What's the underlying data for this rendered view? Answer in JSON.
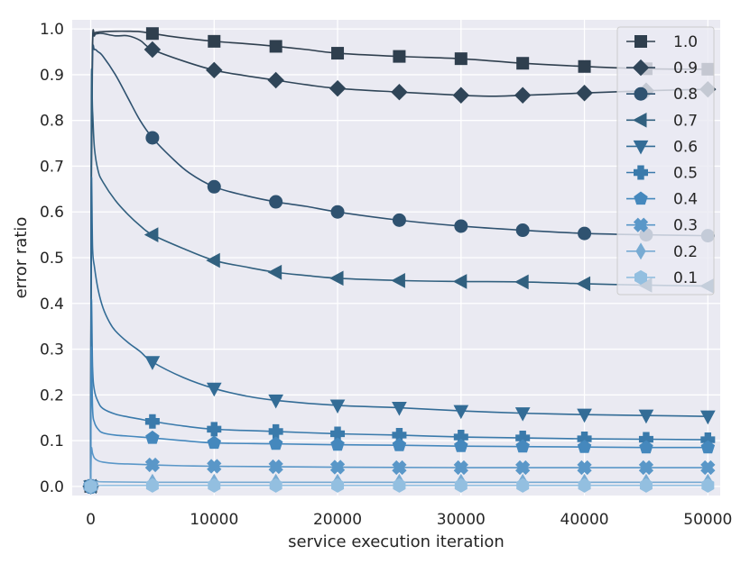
{
  "chart_data": {
    "type": "line",
    "title": "",
    "xlabel": "service execution iteration",
    "ylabel": "error ratio",
    "xlim": [
      -1500,
      51000
    ],
    "ylim": [
      -0.02,
      1.02
    ],
    "xticks": [
      0,
      10000,
      20000,
      30000,
      40000,
      50000
    ],
    "xtick_labels": [
      "0",
      "10000",
      "20000",
      "30000",
      "40000",
      "50000"
    ],
    "yticks": [
      0.0,
      0.1,
      0.2,
      0.3,
      0.4,
      0.5,
      0.6,
      0.7,
      0.8,
      0.9,
      1.0
    ],
    "ytick_labels": [
      "0.0",
      "0.1",
      "0.2",
      "0.3",
      "0.4",
      "0.5",
      "0.6",
      "0.7",
      "0.8",
      "0.9",
      "1.0"
    ],
    "grid": true,
    "legend_position": "top-right",
    "colors": {
      "background": "#eaeaf2",
      "grid": "#ffffff"
    },
    "marker_x": [
      0,
      5000,
      10000,
      15000,
      20000,
      25000,
      30000,
      35000,
      40000,
      45000,
      50000
    ],
    "series": [
      {
        "name": "1.0",
        "color": "#2f3f4e",
        "marker": "square",
        "x": [
          0,
          50,
          150,
          300,
          600,
          1000,
          2000,
          3000,
          4000,
          5000,
          7000,
          10000,
          12500,
          15000,
          17500,
          20000,
          25000,
          30000,
          35000,
          40000,
          45000,
          50000
        ],
        "y": [
          0.0,
          0.7,
          0.97,
          0.99,
          0.993,
          0.994,
          0.995,
          0.995,
          0.994,
          0.99,
          0.982,
          0.973,
          0.968,
          0.962,
          0.955,
          0.947,
          0.94,
          0.935,
          0.925,
          0.918,
          0.913,
          0.912
        ],
        "marker_values": [
          0.0,
          0.99,
          0.973,
          0.962,
          0.947,
          0.94,
          0.935,
          0.925,
          0.918,
          0.913,
          0.912
        ]
      },
      {
        "name": "0.9",
        "color": "#2f4558",
        "marker": "diamond",
        "x": [
          0,
          50,
          150,
          300,
          600,
          1000,
          2000,
          3000,
          4000,
          5000,
          7500,
          10000,
          12500,
          15000,
          17500,
          20000,
          25000,
          30000,
          32500,
          35000,
          40000,
          45000,
          50000
        ],
        "y": [
          0.0,
          0.65,
          0.96,
          0.985,
          0.99,
          0.99,
          0.985,
          0.985,
          0.975,
          0.955,
          0.93,
          0.91,
          0.898,
          0.888,
          0.878,
          0.87,
          0.862,
          0.855,
          0.853,
          0.855,
          0.86,
          0.865,
          0.868
        ],
        "marker_values": [
          0.0,
          0.955,
          0.91,
          0.888,
          0.87,
          0.862,
          0.855,
          0.855,
          0.86,
          0.865,
          0.868
        ]
      },
      {
        "name": "0.8",
        "color": "#2f5270",
        "marker": "circle",
        "x": [
          0,
          50,
          150,
          300,
          600,
          1000,
          2000,
          3000,
          4000,
          5000,
          6500,
          8000,
          10000,
          12500,
          15000,
          17500,
          20000,
          25000,
          30000,
          35000,
          40000,
          45000,
          50000
        ],
        "y": [
          0.0,
          0.7,
          0.94,
          0.955,
          0.95,
          0.94,
          0.9,
          0.85,
          0.8,
          0.762,
          0.72,
          0.685,
          0.655,
          0.636,
          0.622,
          0.612,
          0.6,
          0.582,
          0.569,
          0.56,
          0.553,
          0.55,
          0.548
        ],
        "marker_values": [
          0.0,
          0.762,
          0.655,
          0.622,
          0.6,
          0.582,
          0.569,
          0.56,
          0.553,
          0.55,
          0.548
        ]
      },
      {
        "name": "0.7",
        "color": "#31607f",
        "marker": "triangle-left",
        "x": [
          0,
          50,
          150,
          300,
          600,
          1000,
          2000,
          3000,
          4000,
          5000,
          7500,
          10000,
          12500,
          15000,
          17500,
          20000,
          25000,
          30000,
          35000,
          40000,
          45000,
          50000
        ],
        "y": [
          0.0,
          0.85,
          0.82,
          0.74,
          0.69,
          0.665,
          0.625,
          0.595,
          0.57,
          0.55,
          0.52,
          0.494,
          0.48,
          0.468,
          0.461,
          0.455,
          0.45,
          0.448,
          0.447,
          0.443,
          0.44,
          0.438
        ],
        "marker_values": [
          0.0,
          0.55,
          0.494,
          0.468,
          0.455,
          0.45,
          0.448,
          0.447,
          0.443,
          0.44,
          0.438
        ]
      },
      {
        "name": "0.6",
        "color": "#336c96",
        "marker": "triangle-down",
        "x": [
          0,
          50,
          150,
          300,
          600,
          1000,
          1500,
          2000,
          3000,
          4000,
          5000,
          7500,
          10000,
          12500,
          15000,
          20000,
          25000,
          30000,
          35000,
          40000,
          45000,
          50000
        ],
        "y": [
          0.0,
          0.65,
          0.52,
          0.48,
          0.43,
          0.39,
          0.36,
          0.34,
          0.315,
          0.295,
          0.272,
          0.238,
          0.214,
          0.198,
          0.188,
          0.177,
          0.172,
          0.165,
          0.16,
          0.157,
          0.155,
          0.153
        ],
        "marker_values": [
          0.0,
          0.272,
          0.214,
          0.188,
          0.177,
          0.172,
          0.165,
          0.16,
          0.157,
          0.155,
          0.153
        ]
      },
      {
        "name": "0.5",
        "color": "#3a7aab",
        "marker": "plus",
        "x": [
          0,
          50,
          150,
          300,
          600,
          1000,
          2000,
          3000,
          4000,
          5000,
          7500,
          10000,
          15000,
          20000,
          25000,
          30000,
          35000,
          40000,
          45000,
          50000
        ],
        "y": [
          0.0,
          0.4,
          0.26,
          0.21,
          0.185,
          0.17,
          0.158,
          0.152,
          0.147,
          0.142,
          0.132,
          0.125,
          0.12,
          0.115,
          0.112,
          0.108,
          0.106,
          0.104,
          0.103,
          0.102
        ],
        "marker_values": [
          0.0,
          0.142,
          0.125,
          0.12,
          0.115,
          0.112,
          0.108,
          0.106,
          0.104,
          0.103,
          0.102
        ]
      },
      {
        "name": "0.4",
        "color": "#4588bd",
        "marker": "pentagon",
        "x": [
          0,
          50,
          150,
          300,
          600,
          1000,
          2000,
          3000,
          4000,
          5000,
          7500,
          10000,
          15000,
          20000,
          25000,
          30000,
          35000,
          40000,
          45000,
          50000
        ],
        "y": [
          0.0,
          0.3,
          0.17,
          0.14,
          0.125,
          0.117,
          0.112,
          0.11,
          0.108,
          0.106,
          0.1,
          0.095,
          0.093,
          0.091,
          0.09,
          0.088,
          0.087,
          0.086,
          0.085,
          0.085
        ],
        "marker_values": [
          0.0,
          0.106,
          0.095,
          0.093,
          0.091,
          0.09,
          0.088,
          0.087,
          0.086,
          0.085,
          0.085
        ]
      },
      {
        "name": "0.3",
        "color": "#5a97c8",
        "marker": "x-filled",
        "x": [
          0,
          50,
          150,
          300,
          600,
          1000,
          2000,
          3000,
          5000,
          7500,
          10000,
          15000,
          20000,
          30000,
          40000,
          50000
        ],
        "y": [
          0.0,
          0.08,
          0.072,
          0.062,
          0.056,
          0.053,
          0.05,
          0.049,
          0.047,
          0.045,
          0.044,
          0.043,
          0.042,
          0.041,
          0.041,
          0.041
        ],
        "marker_values": [
          0.0,
          0.047,
          0.044,
          0.043,
          0.042,
          0.041,
          0.041,
          0.041,
          0.041,
          0.041,
          0.041
        ]
      },
      {
        "name": "0.2",
        "color": "#78abd3",
        "marker": "thin-diamond",
        "x": [
          0,
          50,
          150,
          300,
          1000,
          5000,
          10000,
          20000,
          30000,
          40000,
          50000
        ],
        "y": [
          0.0,
          0.013,
          0.012,
          0.011,
          0.01,
          0.009,
          0.009,
          0.009,
          0.009,
          0.009,
          0.009
        ],
        "marker_values": [
          0.0,
          0.009,
          0.009,
          0.009,
          0.009,
          0.009,
          0.009,
          0.009,
          0.009,
          0.009,
          0.009
        ]
      },
      {
        "name": "0.1",
        "color": "#93bfe0",
        "marker": "hexagon",
        "x": [
          0,
          50,
          300,
          1000,
          5000,
          10000,
          20000,
          30000,
          40000,
          50000
        ],
        "y": [
          0.0,
          0.003,
          0.002,
          0.002,
          0.002,
          0.002,
          0.002,
          0.002,
          0.002,
          0.002
        ],
        "marker_values": [
          0.0,
          0.002,
          0.002,
          0.002,
          0.002,
          0.002,
          0.002,
          0.002,
          0.002,
          0.002,
          0.002
        ]
      }
    ]
  }
}
